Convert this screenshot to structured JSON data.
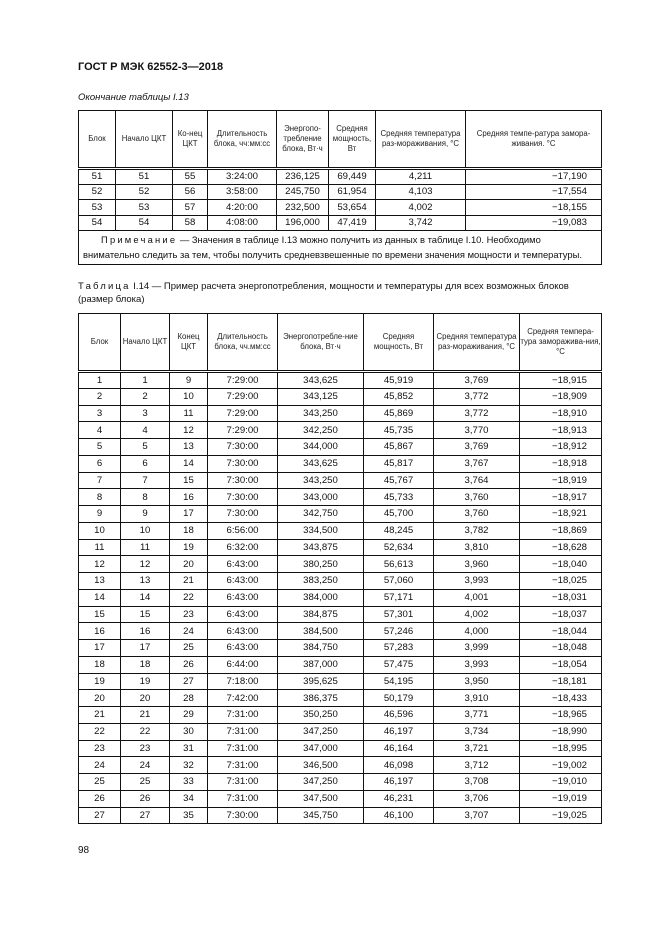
{
  "header": {
    "doc_id": "ГОСТ Р МЭК 62552-3—2018"
  },
  "table13": {
    "caption": "Окончание таблицы I.13",
    "columns": [
      "Блок",
      "Начало ЦКТ",
      "Ко-нец ЦКТ",
      "Длительность блока, чч:мм:сс",
      "Энергопо-требление блока, Вт·ч",
      "Средняя мощность, Вт",
      "Средняя температура раз-мораживания, °С",
      "Средняя темпе-ратура замора-живания. °С"
    ],
    "rows": [
      [
        "51",
        "51",
        "55",
        "3:24:00",
        "236,125",
        "69,449",
        "4,211",
        "−17,190"
      ],
      [
        "52",
        "52",
        "56",
        "3:58:00",
        "245,750",
        "61,954",
        "4,103",
        "−17,554"
      ],
      [
        "53",
        "53",
        "57",
        "4:20:00",
        "232,500",
        "53,654",
        "4,002",
        "−18,155"
      ],
      [
        "54",
        "54",
        "58",
        "4:08:00",
        "196,000",
        "47,419",
        "3,742",
        "−19,083"
      ]
    ],
    "note_label": "Примечание",
    "note_text": " — Значения в таблице I.13 можно получить из данных в таблице I.10. Необходимо внимательно следить за тем, чтобы получить средневзвешенные по времени значения мощности и температуры."
  },
  "table14": {
    "caption_label": "Таблица",
    "caption_text": " I.14 — Пример расчета энергопотребления, мощности и температуры для всех возможных блоков (размер блока)",
    "columns": [
      "Блок",
      "Начало ЦКТ",
      "Конец ЦКТ",
      "Длительность блока, чч.мм:сс",
      "Энергопотребле-ние блока, Вт·ч",
      "Средняя мощность, Вт",
      "Средняя температура раз-мораживания, °С",
      "Средняя темпера-тура заморажива-ния, °С"
    ],
    "rows": [
      [
        "1",
        "1",
        "9",
        "7:29:00",
        "343,625",
        "45,919",
        "3,769",
        "−18,915"
      ],
      [
        "2",
        "2",
        "10",
        "7:29:00",
        "343,125",
        "45,852",
        "3,772",
        "−18,909"
      ],
      [
        "3",
        "3",
        "11",
        "7:29:00",
        "343,250",
        "45,869",
        "3,772",
        "−18,910"
      ],
      [
        "4",
        "4",
        "12",
        "7:29:00",
        "342,250",
        "45,735",
        "3,770",
        "−18,913"
      ],
      [
        "5",
        "5",
        "13",
        "7:30:00",
        "344,000",
        "45,867",
        "3,769",
        "−18,912"
      ],
      [
        "6",
        "6",
        "14",
        "7:30:00",
        "343,625",
        "45,817",
        "3,767",
        "−18,918"
      ],
      [
        "7",
        "7",
        "15",
        "7:30:00",
        "343,250",
        "45,767",
        "3,764",
        "−18,919"
      ],
      [
        "8",
        "8",
        "16",
        "7:30:00",
        "343,000",
        "45,733",
        "3,760",
        "−18,917"
      ],
      [
        "9",
        "9",
        "17",
        "7:30:00",
        "342,750",
        "45,700",
        "3,760",
        "−18,921"
      ],
      [
        "10",
        "10",
        "18",
        "6:56:00",
        "334,500",
        "48,245",
        "3,782",
        "−18,869"
      ],
      [
        "11",
        "11",
        "19",
        "6:32:00",
        "343,875",
        "52,634",
        "3,810",
        "−18,628"
      ],
      [
        "12",
        "12",
        "20",
        "6:43:00",
        "380,250",
        "56,613",
        "3,960",
        "−18,040"
      ],
      [
        "13",
        "13",
        "21",
        "6:43:00",
        "383,250",
        "57,060",
        "3,993",
        "−18,025"
      ],
      [
        "14",
        "14",
        "22",
        "6:43:00",
        "384,000",
        "57,171",
        "4,001",
        "−18,031"
      ],
      [
        "15",
        "15",
        "23",
        "6:43:00",
        "384,875",
        "57,301",
        "4,002",
        "−18,037"
      ],
      [
        "16",
        "16",
        "24",
        "6:43:00",
        "384,500",
        "57,246",
        "4,000",
        "−18,044"
      ],
      [
        "17",
        "17",
        "25",
        "6:43:00",
        "384,750",
        "57,283",
        "3,999",
        "−18,048"
      ],
      [
        "18",
        "18",
        "26",
        "6:44:00",
        "387,000",
        "57,475",
        "3,993",
        "−18,054"
      ],
      [
        "19",
        "19",
        "27",
        "7:18:00",
        "395,625",
        "54,195",
        "3,950",
        "−18,181"
      ],
      [
        "20",
        "20",
        "28",
        "7:42:00",
        "386,375",
        "50,179",
        "3,910",
        "−18,433"
      ],
      [
        "21",
        "21",
        "29",
        "7:31:00",
        "350,250",
        "46,596",
        "3,771",
        "−18,965"
      ],
      [
        "22",
        "22",
        "30",
        "7:31:00",
        "347,250",
        "46,197",
        "3,734",
        "−18,990"
      ],
      [
        "23",
        "23",
        "31",
        "7:31:00",
        "347,000",
        "46,164",
        "3,721",
        "−18,995"
      ],
      [
        "24",
        "24",
        "32",
        "7:31:00",
        "346,500",
        "46,098",
        "3,712",
        "−19,002"
      ],
      [
        "25",
        "25",
        "33",
        "7:31:00",
        "347,250",
        "46,197",
        "3,708",
        "−19,010"
      ],
      [
        "26",
        "26",
        "34",
        "7:31:00",
        "347,500",
        "46,231",
        "3,706",
        "−19,019"
      ],
      [
        "27",
        "27",
        "35",
        "7:30:00",
        "345,750",
        "46,100",
        "3,707",
        "−19,025"
      ]
    ]
  },
  "footer": {
    "page_number": "98"
  }
}
